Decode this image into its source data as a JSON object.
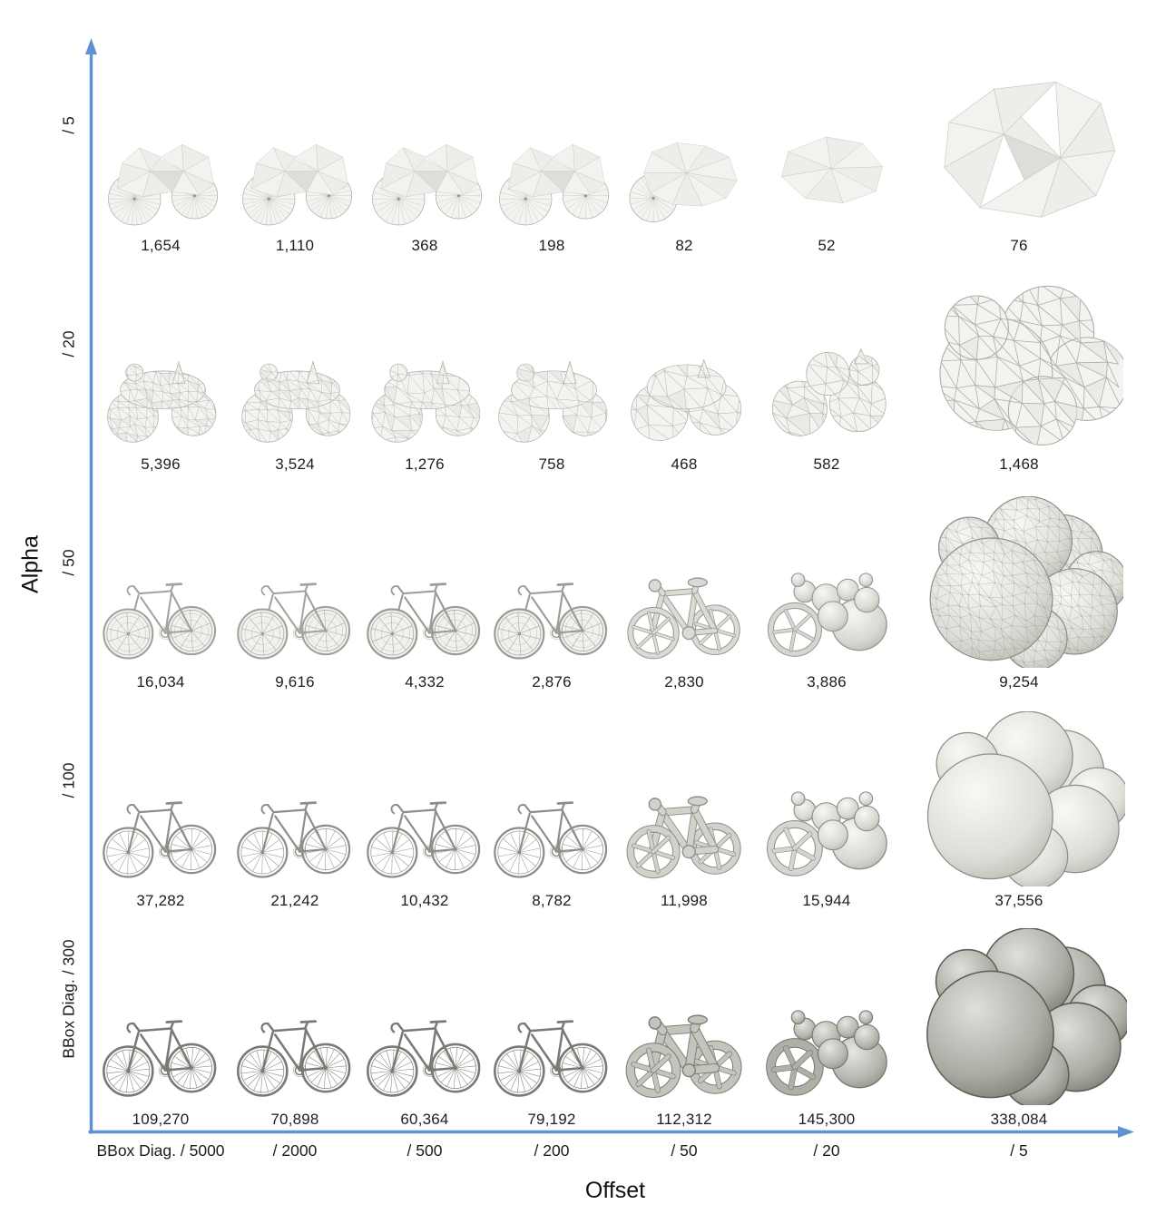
{
  "figure": {
    "y_axis": {
      "title": "Alpha",
      "ticks": [
        "/ 5",
        "/ 20",
        "/ 50",
        "/ 100",
        "BBox Diag. / 300"
      ]
    },
    "x_axis": {
      "title": "Offset",
      "ticks": [
        "BBox Diag. / 5000",
        "/ 2000",
        "/ 500",
        "/ 200",
        "/ 50",
        "/ 20",
        "/ 5"
      ]
    },
    "axis_color": "#5e93d2",
    "rows": [
      {
        "tick": "/ 5",
        "cells": [
          {
            "count": "1,654",
            "icon": "facet-bike-mesh",
            "detail": 4
          },
          {
            "count": "1,110",
            "icon": "facet-bike-mesh",
            "detail": 4
          },
          {
            "count": "368",
            "icon": "facet-bike-mesh",
            "detail": 3
          },
          {
            "count": "198",
            "icon": "facet-bike-mesh",
            "detail": 3
          },
          {
            "count": "82",
            "icon": "facet-blob-mesh",
            "detail": 2
          },
          {
            "count": "52",
            "icon": "facet-chunk-mesh",
            "detail": 1,
            "scale": 1.05
          },
          {
            "count": "76",
            "icon": "facet-hull-mesh",
            "detail": 1,
            "scale": 1.5
          }
        ]
      },
      {
        "tick": "/ 20",
        "cells": [
          {
            "count": "5,396",
            "icon": "tri-bike-mesh",
            "cellsize": 11
          },
          {
            "count": "3,524",
            "icon": "tri-bike-mesh",
            "cellsize": 13
          },
          {
            "count": "1,276",
            "icon": "tri-bike-mesh",
            "cellsize": 16
          },
          {
            "count": "758",
            "icon": "tri-bike-mesh",
            "cellsize": 19
          },
          {
            "count": "468",
            "icon": "tri-blob-mesh",
            "cellsize": 22
          },
          {
            "count": "582",
            "icon": "tri-chunk-mesh",
            "cellsize": 20,
            "scale": 1.05
          },
          {
            "count": "1,468",
            "icon": "tri-balls-mesh",
            "cellsize": 17,
            "scale": 1.55
          }
        ]
      },
      {
        "tick": "/ 50",
        "cells": [
          {
            "count": "16,034",
            "icon": "wire-bike-mesh",
            "detail": 1
          },
          {
            "count": "9,616",
            "icon": "wire-bike-mesh",
            "detail": 1
          },
          {
            "count": "4,332",
            "icon": "wire-bike-mesh",
            "detail": 2
          },
          {
            "count": "2,876",
            "icon": "wire-bike-mesh",
            "detail": 2
          },
          {
            "count": "2,830",
            "icon": "puffy-bike-mesh",
            "level": 1
          },
          {
            "count": "3,886",
            "icon": "blob-bike-mesh",
            "level": 1,
            "scale": 1.05
          },
          {
            "count": "9,254",
            "icon": "ball-cluster-mesh",
            "shade": "light",
            "wire": true,
            "scale": 1.55
          }
        ]
      },
      {
        "tick": "/ 100",
        "cells": [
          {
            "count": "37,282",
            "icon": "wire-bike-mesh",
            "detail": 3
          },
          {
            "count": "21,242",
            "icon": "wire-bike-mesh",
            "detail": 3
          },
          {
            "count": "10,432",
            "icon": "wire-bike-mesh",
            "detail": 3
          },
          {
            "count": "8,782",
            "icon": "wire-bike-mesh",
            "detail": 3
          },
          {
            "count": "11,998",
            "icon": "puffy-bike-mesh",
            "level": 2
          },
          {
            "count": "15,944",
            "icon": "blob-bike-mesh",
            "level": 2,
            "scale": 1.05
          },
          {
            "count": "37,556",
            "icon": "ball-cluster-mesh",
            "shade": "light",
            "wire": false,
            "scale": 1.58
          }
        ]
      },
      {
        "tick": "BBox Diag. / 300",
        "cells": [
          {
            "count": "109,270",
            "icon": "wire-bike-mesh",
            "detail": 4
          },
          {
            "count": "70,898",
            "icon": "wire-bike-mesh",
            "detail": 4
          },
          {
            "count": "60,364",
            "icon": "wire-bike-mesh",
            "detail": 4
          },
          {
            "count": "79,192",
            "icon": "wire-bike-mesh",
            "detail": 4
          },
          {
            "count": "112,312",
            "icon": "puffy-bike-mesh",
            "level": 3
          },
          {
            "count": "145,300",
            "icon": "blob-bike-mesh",
            "level": 3,
            "scale": 1.05
          },
          {
            "count": "338,084",
            "icon": "ball-cluster-mesh",
            "shade": "dark",
            "wire": false,
            "scale": 1.6
          }
        ]
      }
    ]
  },
  "chart_data": {
    "type": "table",
    "x_label": "Offset",
    "y_label": "Alpha",
    "x_ticks": [
      "BBox Diag. / 5000",
      "/ 2000",
      "/ 500",
      "/ 200",
      "/ 50",
      "/ 20",
      "/ 5"
    ],
    "y_ticks": [
      "/ 5",
      "/ 20",
      "/ 50",
      "/ 100",
      "BBox Diag. / 300"
    ],
    "face_counts": [
      [
        1654,
        1110,
        368,
        198,
        82,
        52,
        76
      ],
      [
        5396,
        3524,
        1276,
        758,
        468,
        582,
        1468
      ],
      [
        16034,
        9616,
        4332,
        2876,
        2830,
        3886,
        9254
      ],
      [
        37282,
        21242,
        10432,
        8782,
        11998,
        15944,
        37556
      ],
      [
        109270,
        70898,
        60364,
        79192,
        112312,
        145300,
        338084
      ]
    ]
  }
}
